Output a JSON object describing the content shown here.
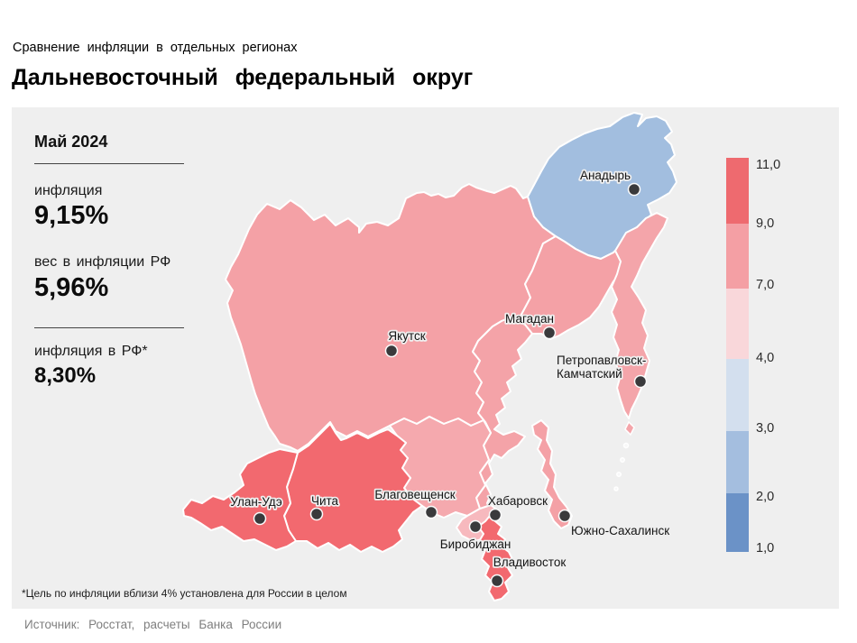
{
  "header": {
    "subtitle": "Сравнение инфляции в отдельных регионах",
    "title": "Дальневосточный федеральный округ"
  },
  "stats": {
    "period": "Май 2024",
    "metrics": [
      {
        "label": "инфляция",
        "value": "9,15%"
      },
      {
        "label": "вес в инфляции РФ",
        "value": "5,96%"
      },
      {
        "label": "инфляция в РФ*",
        "value": "8,30%"
      }
    ]
  },
  "legend": {
    "stops": [
      "11,0",
      "9,0",
      "7,0",
      "4,0",
      "3,0",
      "2,0",
      "1,0"
    ],
    "segment_colors": [
      "#ee6a6f",
      "#f49fa4",
      "#f9d7da",
      "#d3dfee",
      "#a4bedf",
      "#6b92c7"
    ]
  },
  "map": {
    "sea_color": "#efefef",
    "border_color": "#ffffff",
    "dot_color": "#3a3a3c",
    "regions": [
      {
        "id": "yakutia",
        "color": "#f4a1a6"
      },
      {
        "id": "chukotka",
        "color": "#a2bedf"
      },
      {
        "id": "magadan",
        "color": "#f4a1a6"
      },
      {
        "id": "kamchatka",
        "color": "#f4a5aa"
      },
      {
        "id": "khabarovsk",
        "color": "#f4a3a8"
      },
      {
        "id": "amur",
        "color": "#f5a9ae"
      },
      {
        "id": "zabaykalsky",
        "color": "#f2696f"
      },
      {
        "id": "buryatia",
        "color": "#f2696f"
      },
      {
        "id": "jewish-ao",
        "color": "#f7b9be"
      },
      {
        "id": "sakhalin",
        "color": "#f4a1a6"
      },
      {
        "id": "primorsky",
        "color": "#f2696f"
      }
    ],
    "cities": [
      {
        "id": "anadyr",
        "label": "Анадырь"
      },
      {
        "id": "yakutsk",
        "label": "Якутск"
      },
      {
        "id": "magadan",
        "label": "Магадан"
      },
      {
        "id": "petropavlovsk",
        "label": "Петропавловск-\nКамчатский"
      },
      {
        "id": "ulan-ude",
        "label": "Улан-Удэ"
      },
      {
        "id": "chita",
        "label": "Чита"
      },
      {
        "id": "blagoveshchensk",
        "label": "Благовещенск"
      },
      {
        "id": "birobidzhan",
        "label": "Биробиджан"
      },
      {
        "id": "khabarovsk",
        "label": "Хабаровск"
      },
      {
        "id": "yuzhno-sakhalinsk",
        "label": "Южно-Сахалинск"
      },
      {
        "id": "vladivostok",
        "label": "Владивосток"
      }
    ]
  },
  "footnote": "*Цель по инфляции вблизи 4% установлена для России в целом",
  "source": "Источник: Росстат, расчеты Банка России"
}
